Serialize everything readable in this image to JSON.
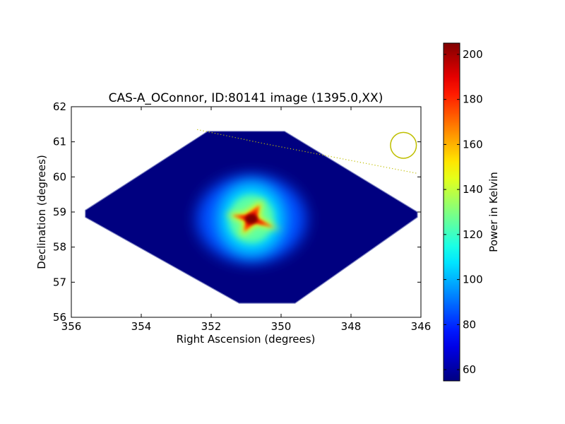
{
  "chart_data": {
    "type": "heatmap",
    "title": "CAS-A_OConnor, ID:80141 image (1395.0,XX)",
    "xlabel": "Right Ascension (degrees)",
    "ylabel": "Declination (degrees)",
    "xlim": [
      356,
      346
    ],
    "ylim": [
      56,
      62
    ],
    "x_ticks": [
      356,
      354,
      352,
      350,
      348,
      346
    ],
    "y_ticks": [
      56,
      57,
      58,
      59,
      60,
      61,
      62
    ],
    "colorbar": {
      "label": "Power in Kelvin",
      "min": 55,
      "max": 205,
      "ticks": [
        60,
        80,
        100,
        120,
        140,
        160,
        180,
        200
      ],
      "colormap": "jet"
    },
    "image_region_polygon": [
      [
        352.1,
        61.3
      ],
      [
        351.3,
        61.3
      ],
      [
        350.5,
        61.3
      ],
      [
        349.9,
        61.3
      ],
      [
        346.1,
        59.0
      ],
      [
        346.1,
        58.85
      ],
      [
        349.6,
        56.4
      ],
      [
        351.2,
        56.4
      ],
      [
        355.6,
        58.85
      ],
      [
        355.6,
        59.05
      ]
    ],
    "background_level_kelvin": 55,
    "peak": {
      "ra": 350.85,
      "dec": 58.8,
      "value_kelvin": 205
    },
    "annotations": {
      "beam_circle": {
        "ra": 346.5,
        "dec": 60.9,
        "radius_deg": 0.37,
        "color": "#bfbf00"
      },
      "dotted_track": {
        "points": [
          [
            352.4,
            61.35
          ],
          [
            350.5,
            60.95
          ],
          [
            346.1,
            60.1
          ]
        ],
        "color": "#bfbf00"
      }
    }
  }
}
